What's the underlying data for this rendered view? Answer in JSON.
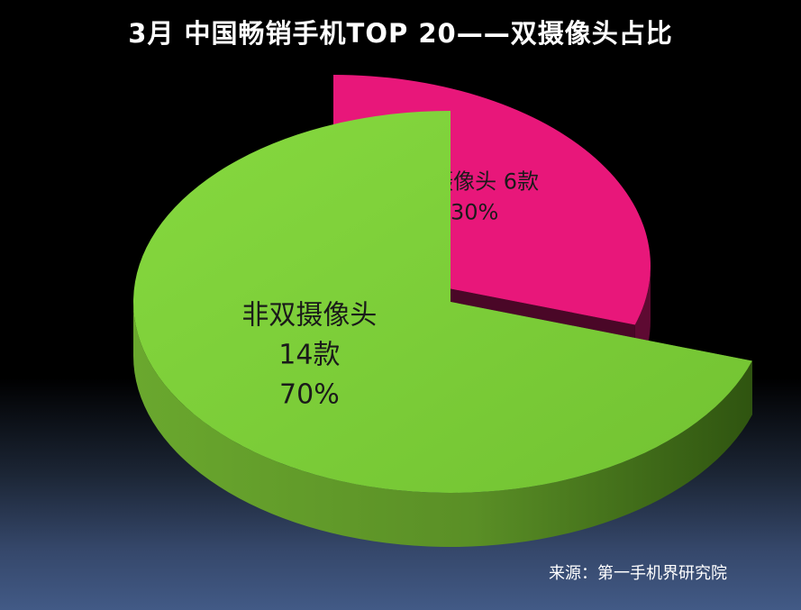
{
  "chart_data": {
    "type": "pie",
    "title": "3月 中国畅销手机TOP 20——双摄像头占比",
    "source": "来源：第一手机界研究院",
    "slices": [
      {
        "name": "双摄像头",
        "count_label": "6款",
        "value": 30,
        "pct_label": "30%",
        "color": "#e8177a",
        "side_color": "#5e0a32"
      },
      {
        "name": "非双摄像头",
        "count_label": "14款",
        "value": 70,
        "pct_label": "70%",
        "color": "#7dcd3a",
        "side_color": "#3d6a18"
      }
    ],
    "legend": "none"
  }
}
